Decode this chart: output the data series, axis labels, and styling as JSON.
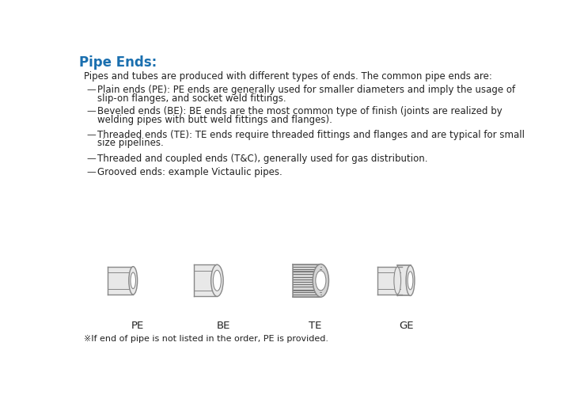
{
  "title": "Pipe Ends:",
  "title_color": "#1a6faf",
  "bg_color": "#ffffff",
  "intro_text": "Pipes and tubes are produced with different types of ends. The common pipe ends are:",
  "bullet_dash": "—",
  "bullets": [
    [
      "Plain ends (PE): PE ends are generally used for smaller diameters and imply the usage of",
      "slip-on flanges, and socket weld fittings."
    ],
    [
      "Beveled ends (BE): BE ends are the most common type of finish (joints are realized by",
      "welding pipes with butt weld fittings and flanges)."
    ],
    [
      "Threaded ends (TE): TE ends require threaded fittings and flanges and are typical for small",
      "size pipelines."
    ],
    [
      "Threaded and coupled ends (T&C), generally used for gas distribution."
    ],
    [
      "Grooved ends: example Victaulic pipes."
    ]
  ],
  "pipe_labels": [
    "PE",
    "BE",
    "TE",
    "GE"
  ],
  "footnote": "※If end of pipe is not listed in the order, PE is provided.",
  "line_color": "#888888",
  "pipe_fill": "#e8e8e8",
  "thread_color": "#666666"
}
